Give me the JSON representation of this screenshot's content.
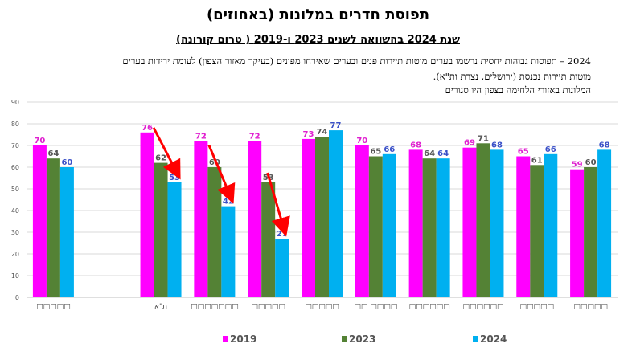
{
  "header": {
    "title": "תפוסת חדרים במלונות (באחוזים)",
    "subtitle": "שנת 2024 בהשוואה לשנים 2023 ו-2019 ( טרום קורונה)",
    "description_line1": "2024 – תפוסות גבוהות יחסית נרשמו בערים מוטות תיירות פנים ובערים שאירחו מפונים (בעיקר מאזור הצפון) לעומת ירידות בערים",
    "description_line2": "מוטות תיירות נכנסת (ירושלים, נצרת ות\"א).",
    "description_line3": "המלונות באזורי הלחימה בצפון היו סגורים"
  },
  "colors": {
    "2019": "#FF00FF",
    "2023": "#548235",
    "2024": "#00B0F0",
    "arrow": "#FF0000",
    "grid": "#D9D9D9"
  },
  "chart_data": {
    "type": "bar",
    "categories": [
      "□□□□□",
      "",
      "ת\"א",
      "□□□□□□□",
      "□□□□□",
      "□□□□□",
      "□□ □□□□",
      "□□□□□□",
      "□□□□□□",
      "□□□□□",
      "□□□□□"
    ],
    "series": [
      {
        "name": "2019",
        "values": [
          70,
          null,
          76,
          72,
          72,
          73,
          70,
          68,
          69,
          65,
          59
        ]
      },
      {
        "name": "2023",
        "values": [
          64,
          null,
          62,
          60,
          53,
          74,
          65,
          64,
          71,
          61,
          60
        ]
      },
      {
        "name": "2024",
        "values": [
          60,
          null,
          53,
          42,
          27,
          77,
          66,
          64,
          68,
          66,
          68
        ]
      }
    ],
    "ylim": [
      0,
      90
    ],
    "yticks": [
      0,
      10,
      20,
      30,
      40,
      50,
      60,
      70,
      80,
      90
    ],
    "grid": true,
    "legend": "bottom",
    "annotations": "red arrows pointing to declines in 2024 for ת\"א, the third and fourth groups"
  }
}
